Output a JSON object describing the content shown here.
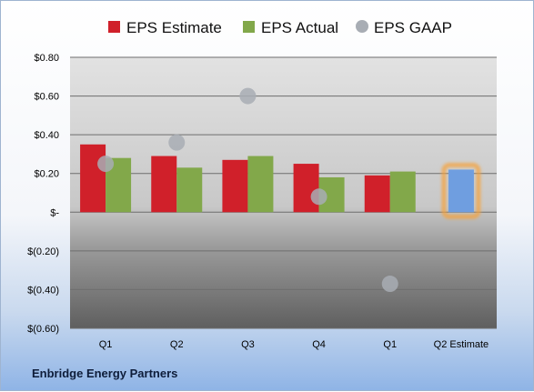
{
  "company": "Enbridge Energy Partners",
  "chart_data": {
    "type": "bar",
    "categories": [
      "Q1",
      "Q2",
      "Q3",
      "Q4",
      "Q1",
      "Q2 Estimate"
    ],
    "series": [
      {
        "name": "EPS Estimate",
        "color": "#d0202a",
        "values": [
          0.35,
          0.29,
          0.27,
          0.25,
          0.19,
          null
        ]
      },
      {
        "name": "EPS Actual",
        "color": "#82a84a",
        "values": [
          0.28,
          0.23,
          0.29,
          0.18,
          0.21,
          null
        ]
      },
      {
        "name": "EPS GAAP",
        "color": "#a8adb4",
        "type": "scatter",
        "values": [
          0.25,
          0.36,
          0.6,
          0.08,
          -0.37,
          null
        ]
      },
      {
        "name": "Q2 Estimate",
        "color": "#6f9ee0",
        "highlight": "#f6a23a",
        "values": [
          null,
          null,
          null,
          null,
          null,
          0.22
        ]
      }
    ],
    "legend": [
      "EPS Estimate",
      "EPS Actual",
      "EPS GAAP"
    ],
    "legend_position": "top",
    "y_ticks": [
      "$0.80",
      "$0.60",
      "$0.40",
      "$0.20",
      "$-",
      "$(0.20)",
      "$(0.40)",
      "$(0.60)"
    ],
    "y_tick_values": [
      0.8,
      0.6,
      0.4,
      0.2,
      0,
      -0.2,
      -0.4,
      -0.6
    ],
    "ylim": [
      -0.6,
      0.8
    ],
    "grid": true
  }
}
